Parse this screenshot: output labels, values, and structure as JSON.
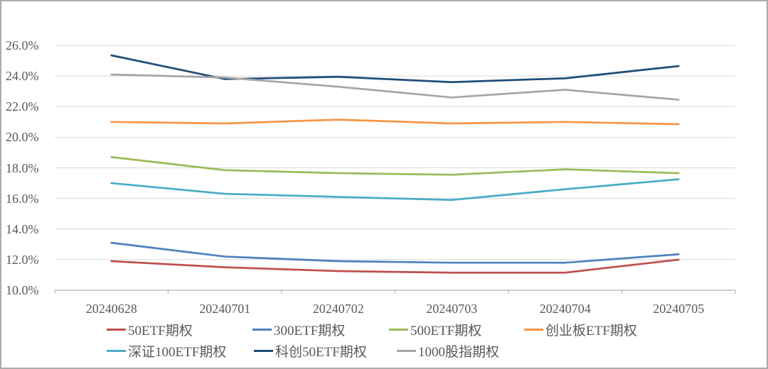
{
  "chart_data": {
    "type": "line",
    "title": "",
    "xlabel": "",
    "ylabel": "",
    "categories": [
      "20240628",
      "20240701",
      "20240702",
      "20240703",
      "20240704",
      "20240705"
    ],
    "series": [
      {
        "name": "50ETF期权",
        "color": "#C0504D",
        "values": [
          11.9,
          11.5,
          11.25,
          11.15,
          11.15,
          12.0
        ]
      },
      {
        "name": "300ETF期权",
        "color": "#4F81BD",
        "values": [
          13.1,
          12.2,
          11.9,
          11.8,
          11.8,
          12.35
        ]
      },
      {
        "name": "500ETF期权",
        "color": "#9BBB59",
        "values": [
          18.7,
          17.85,
          17.65,
          17.55,
          17.9,
          17.65
        ]
      },
      {
        "name": "创业板ETF期权",
        "color": "#F79646",
        "values": [
          21.0,
          20.9,
          21.15,
          20.9,
          21.0,
          20.85
        ]
      },
      {
        "name": "深证100ETF期权",
        "color": "#4BACC6",
        "values": [
          17.0,
          16.3,
          16.1,
          15.9,
          16.6,
          17.25
        ]
      },
      {
        "name": "科创50ETF期权",
        "color": "#1F4E79",
        "values": [
          25.35,
          23.8,
          23.95,
          23.6,
          23.85,
          24.65
        ]
      },
      {
        "name": "1000股指期权",
        "color": "#A6A6A6",
        "values": [
          24.1,
          23.9,
          23.3,
          22.6,
          23.1,
          22.45
        ]
      }
    ],
    "ylim": [
      10,
      26
    ],
    "y_tick_step": 2,
    "y_tick_labels": [
      "10.0%",
      "12.0%",
      "14.0%",
      "16.0%",
      "18.0%",
      "20.0%",
      "22.0%",
      "24.0%",
      "26.0%"
    ],
    "grid": "horizontal",
    "legend_position": "bottom-left",
    "legend_rows": [
      [
        0,
        1,
        2,
        3
      ],
      [
        4,
        5,
        6
      ]
    ]
  },
  "colors": {
    "gridline": "#D9D9D9",
    "axis_line": "#BFBFBF",
    "tick": "#BFBFBF",
    "axis_label": "#595959",
    "frame_border": "#ABABAB",
    "background": "#FFFFFF"
  }
}
